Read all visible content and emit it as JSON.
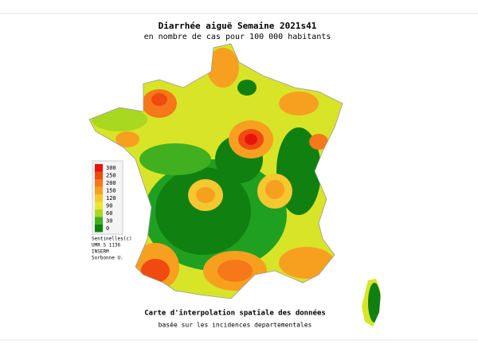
{
  "header": {
    "title": "Diarrhée aiguë Semaine 2021s41",
    "subtitle": "en nombre de cas pour 100 000 habitants"
  },
  "legend": [
    {
      "value": 300,
      "color": "#e8140c"
    },
    {
      "value": 250,
      "color": "#f04a10"
    },
    {
      "value": 200,
      "color": "#f5781a"
    },
    {
      "value": 150,
      "color": "#f7a020"
    },
    {
      "value": 120,
      "color": "#f5c830"
    },
    {
      "value": 90,
      "color": "#e8e830"
    },
    {
      "value": 60,
      "color": "#a8d820"
    },
    {
      "value": 30,
      "color": "#40b020"
    },
    {
      "value": 0,
      "color": "#108010"
    }
  ],
  "credits": [
    "Sentinelles(c)",
    "UMR S 1136",
    "INSERM",
    "Sorbonne U."
  ],
  "footer": {
    "title": "Carte d'interpolation spatiale des données",
    "subtitle": "basée sur les incidences departementales"
  }
}
